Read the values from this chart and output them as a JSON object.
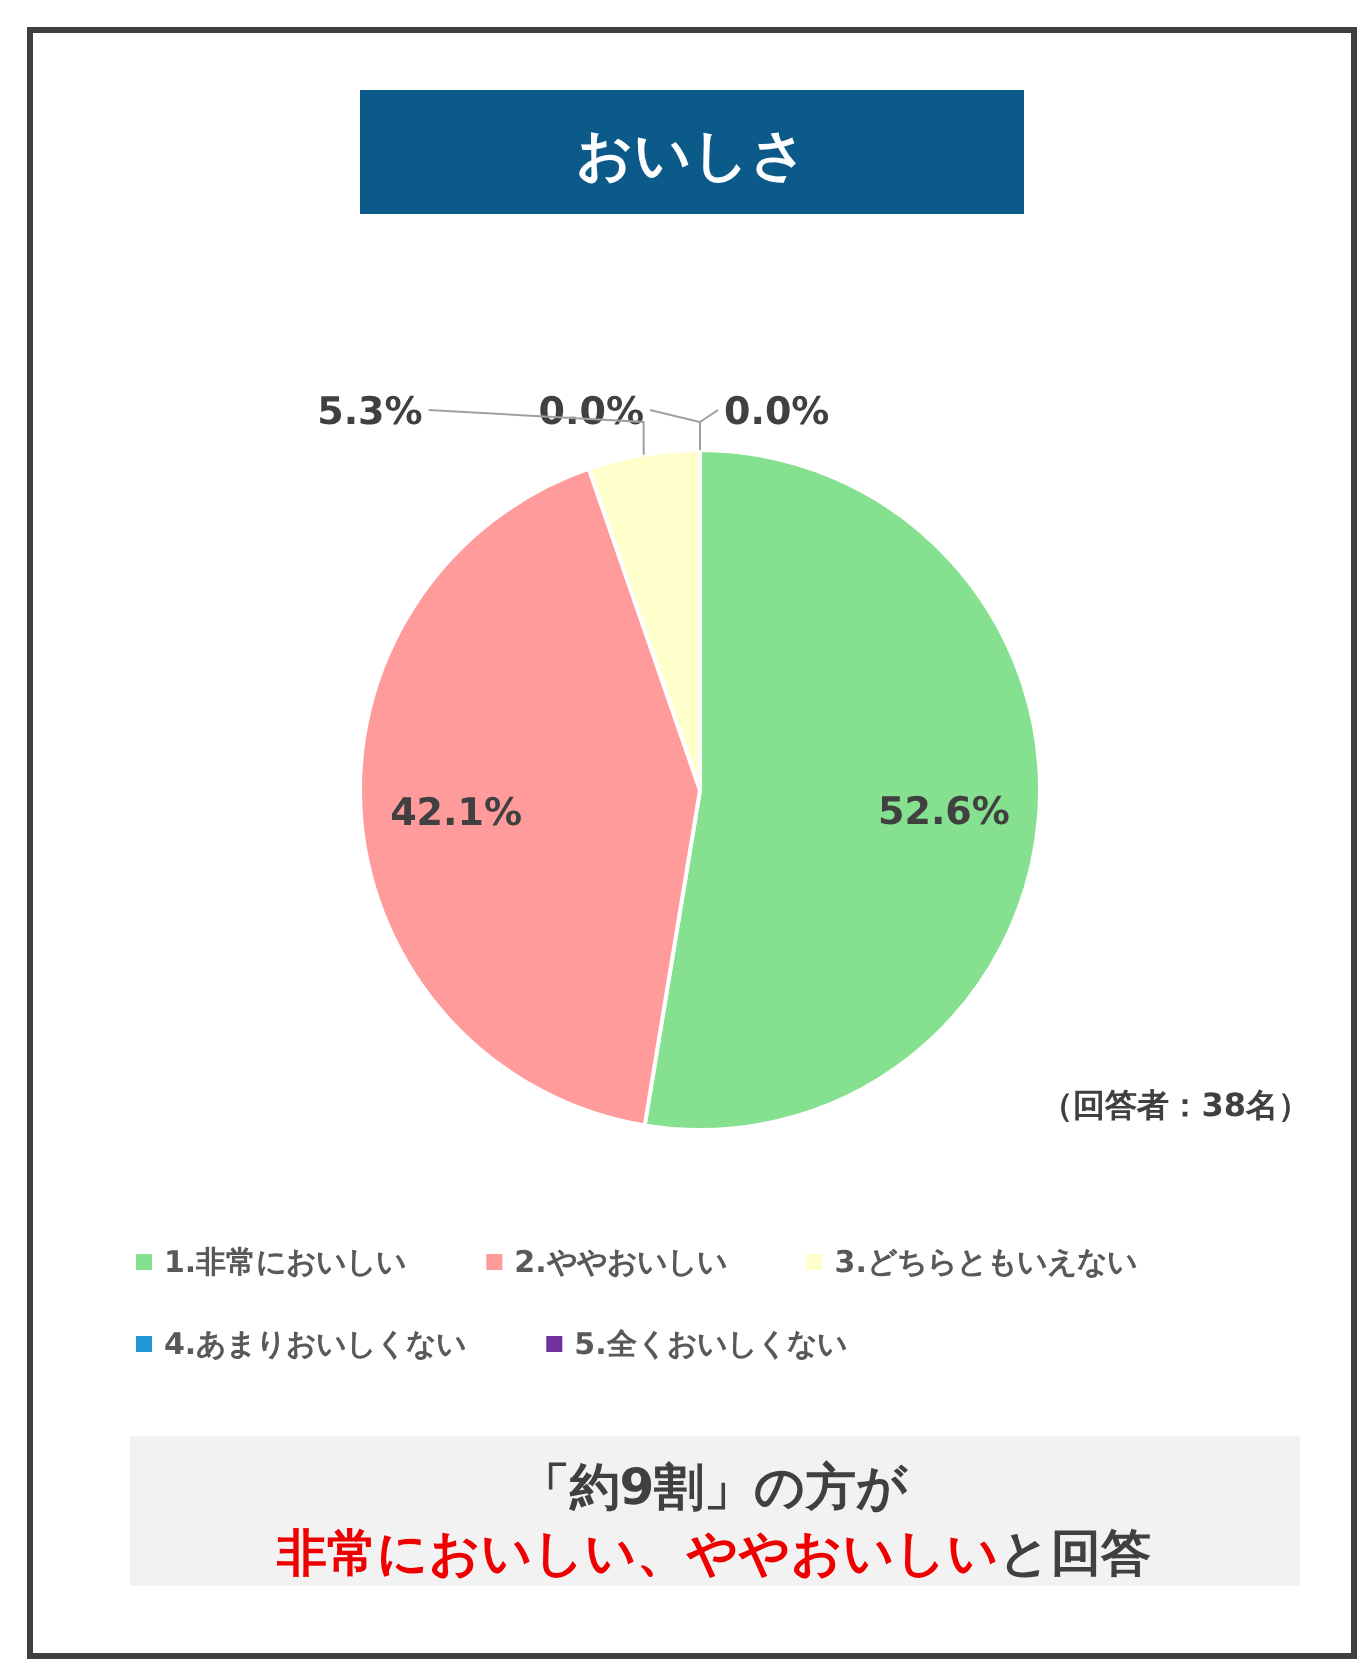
{
  "chart_data": {
    "type": "pie",
    "title": "おいしさ",
    "categories": [
      "1.非常においしい",
      "2.ややおいしい",
      "3.どちらともいえない",
      "4.あまりおいしくない",
      "5.全くおいしくない"
    ],
    "values": [
      52.6,
      42.1,
      5.3,
      0,
      0
    ],
    "colors": [
      "#85e08f",
      "#ff9b9b",
      "#ffffcc",
      "#1f9ad6",
      "#7030a0"
    ],
    "value_labels": [
      "52.6%",
      "42.1%",
      "5.3%",
      "0.0%",
      "0.0%"
    ],
    "legend": "bottom",
    "annotations": [
      "（回答者：38名）",
      "「約9割」の方が",
      "非常においしい、ややおいしい",
      "と回答"
    ]
  }
}
